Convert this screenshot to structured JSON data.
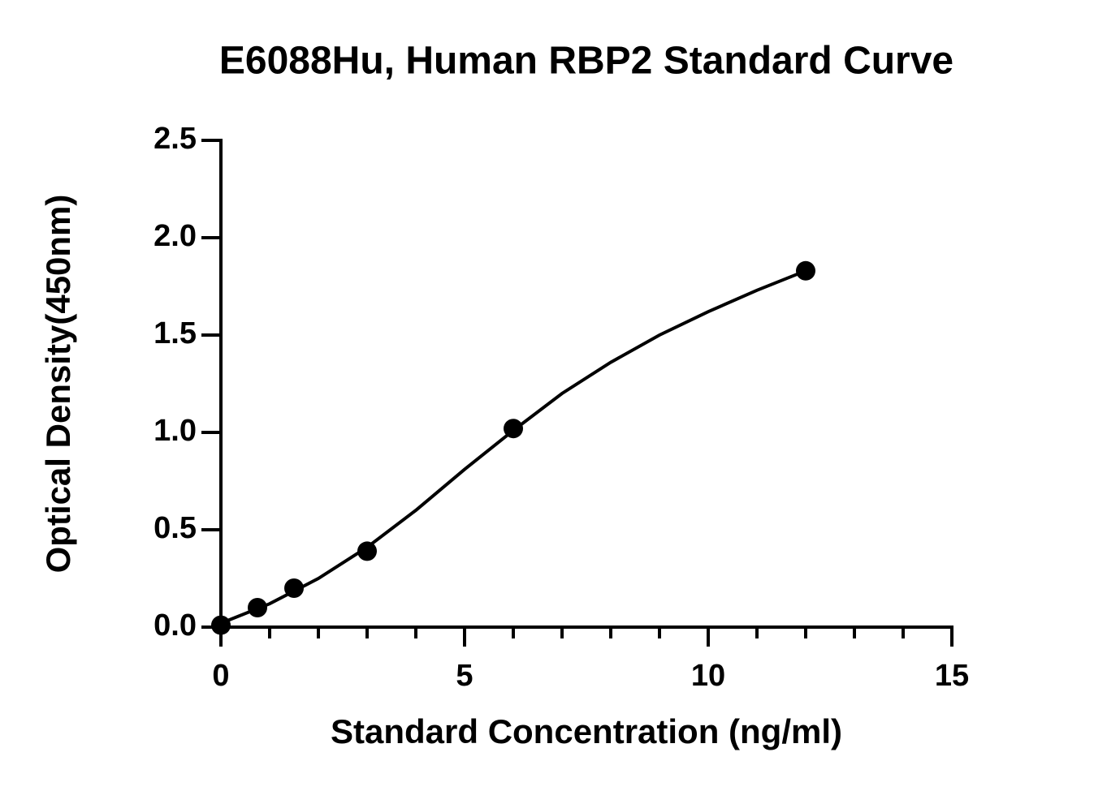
{
  "chart_data": {
    "type": "scatter",
    "title": "E6088Hu, Human RBP2 Standard Curve",
    "x_label": "Standard Concentration (ng/ml)",
    "y_label": "Optical Density(450nm)",
    "points": {
      "color": "#000000",
      "x": [
        0,
        0.75,
        1.5,
        3,
        6,
        12
      ],
      "y": [
        0.01,
        0.1,
        0.2,
        0.39,
        1.02,
        1.83
      ]
    },
    "curve": {
      "color": "#000000",
      "x": [
        0,
        1,
        2,
        3,
        4,
        5,
        6,
        7,
        8,
        9,
        10,
        11,
        12
      ],
      "y": [
        0.02,
        0.12,
        0.25,
        0.41,
        0.6,
        0.81,
        1.01,
        1.2,
        1.36,
        1.5,
        1.62,
        1.73,
        1.83
      ]
    },
    "xlim": [
      0,
      15
    ],
    "xticks": [
      0,
      5,
      10,
      15
    ],
    "xminorticks": [
      1,
      2,
      3,
      4,
      6,
      7,
      8,
      9,
      11,
      12,
      13,
      14
    ],
    "ylim": [
      0,
      2.5
    ],
    "yticks": [
      {
        "value": 0,
        "label": "0.0"
      },
      {
        "value": 0.5,
        "label": "0.5"
      },
      {
        "value": 1,
        "label": "1.0"
      },
      {
        "value": 1.5,
        "label": "1.5"
      },
      {
        "value": 2,
        "label": "2.0"
      },
      {
        "value": 2.5,
        "label": "2.5"
      }
    ],
    "grid": false
  }
}
